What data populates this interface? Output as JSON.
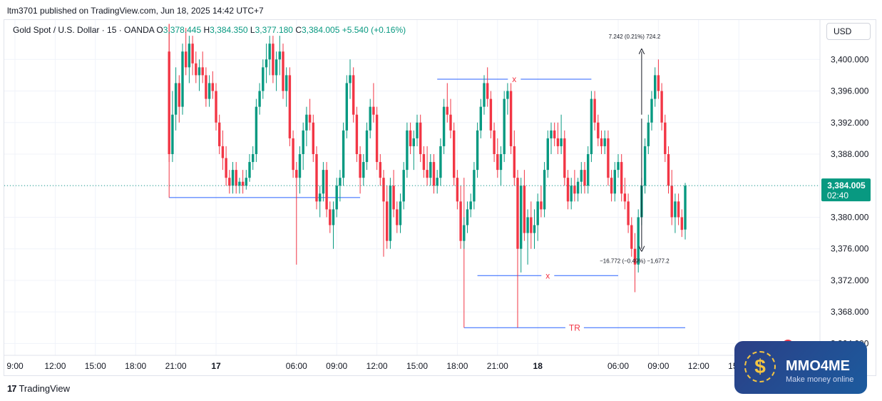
{
  "header": {
    "published": "ltm3701 published on TradingView.com, Jun 18, 2025 14:42 UTC+7"
  },
  "legend": {
    "symbol": "Gold Spot / U.S. Dollar · 15 · OANDA",
    "o_label": "O",
    "o_value": "3,378.445",
    "h_label": "H",
    "h_value": "3,384.350",
    "l_label": "L",
    "l_value": "3,377.180",
    "c_label": "C",
    "c_value": "3,384.005",
    "change": "+5.540 (+0.16%)"
  },
  "currency_button": "USD",
  "footer": {
    "brand": "TradingView"
  },
  "watermark": {
    "name": "MMO4ME",
    "tagline": "Make money online",
    "coin": "$"
  },
  "chart_data": {
    "type": "candlestick",
    "ylim": [
      3362.5,
      3405.0
    ],
    "x_ticks": [
      "9:00",
      "12:00",
      "15:00",
      "18:00",
      "21:00",
      "17",
      "06:00",
      "09:00",
      "12:00",
      "15:00",
      "18:00",
      "21:00",
      "18",
      "06:00",
      "09:00",
      "12:00",
      "15:00"
    ],
    "x_tick_index": [
      0,
      12,
      24,
      36,
      48,
      60,
      84,
      96,
      108,
      120,
      132,
      144,
      156,
      180,
      192,
      204,
      216
    ],
    "y_ticks": [
      "3,364.000",
      "3,368.000",
      "3,372.000",
      "3,376.000",
      "3,380.000",
      "3,384.000",
      "3,388.000",
      "3,392.000",
      "3,396.000",
      "3,400.000"
    ],
    "y_tick_values": [
      3364,
      3368,
      3372,
      3376,
      3380,
      3384,
      3388,
      3392,
      3396,
      3400
    ],
    "last_price": {
      "value": 3384.005,
      "label": "3,384.005",
      "countdown": "02:40"
    },
    "up_color": "#089981",
    "down_color": "#f23645",
    "candles": [
      [
        3401.0,
        3404.5,
        3387.0,
        3388.0
      ],
      [
        3388.0,
        3396.0,
        3387.0,
        3393.0
      ],
      [
        3393.0,
        3399.0,
        3391.0,
        3397.0
      ],
      [
        3397.0,
        3398.0,
        3392.0,
        3394.0
      ],
      [
        3394.0,
        3402.0,
        3393.0,
        3401.0
      ],
      [
        3401.0,
        3404.0,
        3398.0,
        3399.0
      ],
      [
        3399.0,
        3403.0,
        3397.0,
        3402.0
      ],
      [
        3402.0,
        3403.0,
        3398.0,
        3399.5
      ],
      [
        3399.5,
        3401.0,
        3397.0,
        3398.0
      ],
      [
        3398.0,
        3400.0,
        3396.0,
        3399.0
      ],
      [
        3399.0,
        3401.0,
        3397.0,
        3398.0
      ],
      [
        3398.0,
        3399.0,
        3394.0,
        3395.0
      ],
      [
        3395.0,
        3398.0,
        3394.0,
        3397.0
      ],
      [
        3397.0,
        3398.5,
        3395.0,
        3396.0
      ],
      [
        3396.0,
        3397.0,
        3391.0,
        3392.0
      ],
      [
        3392.0,
        3393.0,
        3388.0,
        3389.0
      ],
      [
        3389.0,
        3391.0,
        3386.0,
        3387.5
      ],
      [
        3387.5,
        3389.0,
        3384.0,
        3385.0
      ],
      [
        3385.0,
        3386.0,
        3383.0,
        3384.0
      ],
      [
        3384.0,
        3387.0,
        3383.0,
        3386.0
      ],
      [
        3386.0,
        3387.0,
        3383.0,
        3384.0
      ],
      [
        3384.0,
        3385.0,
        3383.0,
        3384.5
      ],
      [
        3384.5,
        3386.0,
        3383.0,
        3384.0
      ],
      [
        3384.0,
        3386.0,
        3383.5,
        3385.0
      ],
      [
        3385.0,
        3388.0,
        3384.5,
        3387.0
      ],
      [
        3387.0,
        3389.0,
        3386.0,
        3388.0
      ],
      [
        3388.0,
        3395.0,
        3387.0,
        3394.0
      ],
      [
        3394.0,
        3397.0,
        3393.0,
        3396.0
      ],
      [
        3396.0,
        3400.0,
        3395.0,
        3399.0
      ],
      [
        3399.0,
        3402.0,
        3397.0,
        3400.0
      ],
      [
        3400.0,
        3403.0,
        3398.0,
        3402.0
      ],
      [
        3402.0,
        3403.0,
        3397.0,
        3398.0
      ],
      [
        3398.0,
        3401.0,
        3396.0,
        3400.0
      ],
      [
        3400.0,
        3403.0,
        3398.0,
        3401.0
      ],
      [
        3401.0,
        3402.0,
        3395.0,
        3396.0
      ],
      [
        3396.0,
        3399.0,
        3394.0,
        3398.0
      ],
      [
        3398.0,
        3399.0,
        3389.0,
        3390.0
      ],
      [
        3390.0,
        3391.0,
        3385.0,
        3386.0
      ],
      [
        3386.0,
        3387.0,
        3374.0,
        3385.0
      ],
      [
        3385.0,
        3389.0,
        3383.0,
        3388.0
      ],
      [
        3388.0,
        3392.0,
        3386.0,
        3391.0
      ],
      [
        3391.0,
        3394.0,
        3389.0,
        3393.0
      ],
      [
        3393.0,
        3395.0,
        3391.0,
        3392.0
      ],
      [
        3392.0,
        3393.0,
        3387.0,
        3388.0
      ],
      [
        3388.0,
        3389.0,
        3381.0,
        3382.0
      ],
      [
        3382.0,
        3384.0,
        3380.0,
        3383.0
      ],
      [
        3383.0,
        3387.0,
        3382.0,
        3386.0
      ],
      [
        3386.0,
        3387.0,
        3380.0,
        3381.0
      ],
      [
        3381.0,
        3382.0,
        3378.0,
        3379.0
      ],
      [
        3379.0,
        3382.0,
        3376.0,
        3381.0
      ],
      [
        3381.0,
        3385.0,
        3380.0,
        3384.0
      ],
      [
        3384.0,
        3386.0,
        3382.0,
        3385.0
      ],
      [
        3385.0,
        3392.0,
        3384.0,
        3391.0
      ],
      [
        3391.0,
        3398.0,
        3390.0,
        3397.0
      ],
      [
        3397.0,
        3400.0,
        3395.0,
        3398.0
      ],
      [
        3398.0,
        3399.0,
        3392.0,
        3393.0
      ],
      [
        3393.0,
        3394.0,
        3387.0,
        3388.0
      ],
      [
        3388.0,
        3389.0,
        3383.0,
        3385.0
      ],
      [
        3385.0,
        3388.0,
        3384.0,
        3387.0
      ],
      [
        3387.0,
        3392.0,
        3386.0,
        3391.0
      ],
      [
        3391.0,
        3395.0,
        3390.0,
        3394.0
      ],
      [
        3394.0,
        3397.0,
        3392.0,
        3393.0
      ],
      [
        3393.0,
        3394.0,
        3386.0,
        3387.0
      ],
      [
        3387.0,
        3388.0,
        3384.0,
        3385.0
      ],
      [
        3385.0,
        3386.0,
        3375.0,
        3382.0
      ],
      [
        3382.0,
        3384.0,
        3376.0,
        3377.0
      ],
      [
        3377.0,
        3385.0,
        3376.0,
        3384.0
      ],
      [
        3384.0,
        3386.0,
        3380.0,
        3381.0
      ],
      [
        3381.0,
        3382.0,
        3378.0,
        3379.0
      ],
      [
        3379.0,
        3383.0,
        3378.0,
        3382.0
      ],
      [
        3382.0,
        3387.0,
        3381.0,
        3386.0
      ],
      [
        3386.0,
        3392.0,
        3385.0,
        3391.0
      ],
      [
        3391.0,
        3392.0,
        3388.0,
        3389.0
      ],
      [
        3389.0,
        3391.0,
        3386.0,
        3390.0
      ],
      [
        3390.0,
        3393.0,
        3389.0,
        3392.0
      ],
      [
        3392.0,
        3393.0,
        3387.0,
        3388.0
      ],
      [
        3388.0,
        3389.0,
        3385.0,
        3386.0
      ],
      [
        3386.0,
        3389.0,
        3384.0,
        3385.0
      ],
      [
        3385.0,
        3388.0,
        3384.0,
        3387.0
      ],
      [
        3387.0,
        3388.0,
        3383.0,
        3384.0
      ],
      [
        3384.0,
        3386.0,
        3383.0,
        3385.0
      ],
      [
        3385.0,
        3390.0,
        3384.0,
        3389.0
      ],
      [
        3389.0,
        3395.0,
        3388.0,
        3394.0
      ],
      [
        3394.0,
        3397.0,
        3392.0,
        3393.0
      ],
      [
        3393.0,
        3395.0,
        3390.0,
        3391.0
      ],
      [
        3391.0,
        3392.0,
        3384.0,
        3385.0
      ],
      [
        3385.0,
        3386.0,
        3381.0,
        3382.0
      ],
      [
        3382.0,
        3384.0,
        3376.0,
        3377.0
      ],
      [
        3377.0,
        3380.0,
        3376.0,
        3379.0
      ],
      [
        3379.0,
        3382.0,
        3378.0,
        3381.0
      ],
      [
        3381.0,
        3383.0,
        3380.0,
        3382.0
      ],
      [
        3382.0,
        3387.0,
        3381.0,
        3386.0
      ],
      [
        3386.0,
        3392.0,
        3385.0,
        3391.0
      ],
      [
        3391.0,
        3395.0,
        3390.0,
        3394.0
      ],
      [
        3394.0,
        3398.0,
        3393.0,
        3397.0
      ],
      [
        3397.0,
        3399.0,
        3394.0,
        3395.0
      ],
      [
        3395.0,
        3396.0,
        3390.0,
        3391.0
      ],
      [
        3391.0,
        3392.0,
        3387.0,
        3388.0
      ],
      [
        3388.0,
        3390.0,
        3385.0,
        3386.0
      ],
      [
        3386.0,
        3389.0,
        3384.0,
        3388.0
      ],
      [
        3388.0,
        3396.0,
        3387.0,
        3395.0
      ],
      [
        3395.0,
        3397.0,
        3393.0,
        3396.0
      ],
      [
        3396.0,
        3397.0,
        3388.0,
        3389.0
      ],
      [
        3389.0,
        3391.0,
        3384.0,
        3385.0
      ],
      [
        3385.0,
        3386.0,
        3366.0,
        3376.0
      ],
      [
        3376.0,
        3385.0,
        3373.0,
        3384.0
      ],
      [
        3384.0,
        3386.0,
        3377.0,
        3378.0
      ],
      [
        3378.0,
        3381.0,
        3374.0,
        3380.0
      ],
      [
        3380.0,
        3382.0,
        3376.0,
        3378.0
      ],
      [
        3378.0,
        3381.0,
        3376.0,
        3379.0
      ],
      [
        3379.0,
        3383.0,
        3377.0,
        3382.0
      ],
      [
        3382.0,
        3384.0,
        3380.0,
        3381.0
      ],
      [
        3381.0,
        3387.0,
        3380.0,
        3386.0
      ],
      [
        3386.0,
        3391.0,
        3385.0,
        3390.0
      ],
      [
        3390.0,
        3392.0,
        3388.0,
        3391.0
      ],
      [
        3391.0,
        3392.0,
        3389.0,
        3390.0
      ],
      [
        3390.0,
        3392.0,
        3388.0,
        3389.0
      ],
      [
        3389.0,
        3393.0,
        3388.0,
        3390.0
      ],
      [
        3390.0,
        3391.0,
        3384.0,
        3385.0
      ],
      [
        3385.0,
        3386.0,
        3381.0,
        3382.0
      ],
      [
        3382.0,
        3385.0,
        3381.0,
        3384.0
      ],
      [
        3384.0,
        3386.0,
        3382.0,
        3383.0
      ],
      [
        3383.0,
        3385.0,
        3382.0,
        3384.5
      ],
      [
        3384.5,
        3387.0,
        3383.0,
        3386.0
      ],
      [
        3386.0,
        3387.0,
        3383.0,
        3384.0
      ],
      [
        3384.0,
        3389.0,
        3383.0,
        3388.0
      ],
      [
        3388.0,
        3396.0,
        3387.0,
        3395.0
      ],
      [
        3395.0,
        3396.0,
        3391.0,
        3392.0
      ],
      [
        3392.0,
        3393.0,
        3389.0,
        3390.0
      ],
      [
        3390.0,
        3391.0,
        3388.0,
        3389.0
      ],
      [
        3389.0,
        3391.0,
        3388.0,
        3390.0
      ],
      [
        3390.0,
        3391.0,
        3384.0,
        3385.0
      ],
      [
        3385.0,
        3386.0,
        3382.0,
        3383.0
      ],
      [
        3383.0,
        3387.0,
        3382.0,
        3386.0
      ],
      [
        3386.0,
        3388.0,
        3385.0,
        3387.0
      ],
      [
        3387.0,
        3388.0,
        3382.0,
        3383.0
      ],
      [
        3383.0,
        3385.0,
        3381.0,
        3382.0
      ],
      [
        3382.0,
        3383.0,
        3378.0,
        3379.0
      ],
      [
        3379.0,
        3380.0,
        3375.0,
        3376.0
      ],
      [
        3376.0,
        3378.0,
        3370.5,
        3374.0
      ],
      [
        3374.0,
        3381.0,
        3373.0,
        3380.0
      ],
      [
        3380.0,
        3385.0,
        3379.0,
        3384.0
      ],
      [
        3384.0,
        3390.0,
        3383.0,
        3389.0
      ],
      [
        3389.0,
        3393.0,
        3388.0,
        3392.0
      ],
      [
        3392.0,
        3396.0,
        3391.0,
        3395.0
      ],
      [
        3395.0,
        3399.0,
        3394.0,
        3398.0
      ],
      [
        3398.0,
        3400.0,
        3395.0,
        3396.0
      ],
      [
        3396.0,
        3397.0,
        3391.0,
        3392.0
      ],
      [
        3392.0,
        3393.0,
        3387.0,
        3388.0
      ],
      [
        3388.0,
        3389.0,
        3383.0,
        3384.0
      ],
      [
        3384.0,
        3386.0,
        3379.0,
        3380.0
      ],
      [
        3380.0,
        3383.0,
        3378.0,
        3382.0
      ],
      [
        3382.0,
        3383.0,
        3379.0,
        3380.0
      ],
      [
        3380.0,
        3381.0,
        3377.5,
        3378.4
      ],
      [
        3378.445,
        3384.35,
        3377.18,
        3384.005
      ]
    ],
    "candle_index_offset": 46,
    "horizontal_lines": [
      {
        "from_index": 46,
        "to_index": 103,
        "price": 3382.5
      },
      {
        "from_index": 126,
        "to_index": 172,
        "price": 3397.5,
        "label": "x"
      },
      {
        "from_index": 138,
        "to_index": 180,
        "price": 3372.6,
        "label": "x"
      },
      {
        "from_index": 134,
        "to_index": 200,
        "price": 3366.0,
        "label": "TR"
      }
    ],
    "measures": [
      {
        "index": 187,
        "from": 3393.0,
        "to": 3401.0,
        "label": "7.242 (0.21%) 724.2"
      },
      {
        "index": 187,
        "from": 3392.5,
        "to": 3376.0,
        "label": "−16.772 (−0.49%) −1,677.2"
      }
    ]
  }
}
